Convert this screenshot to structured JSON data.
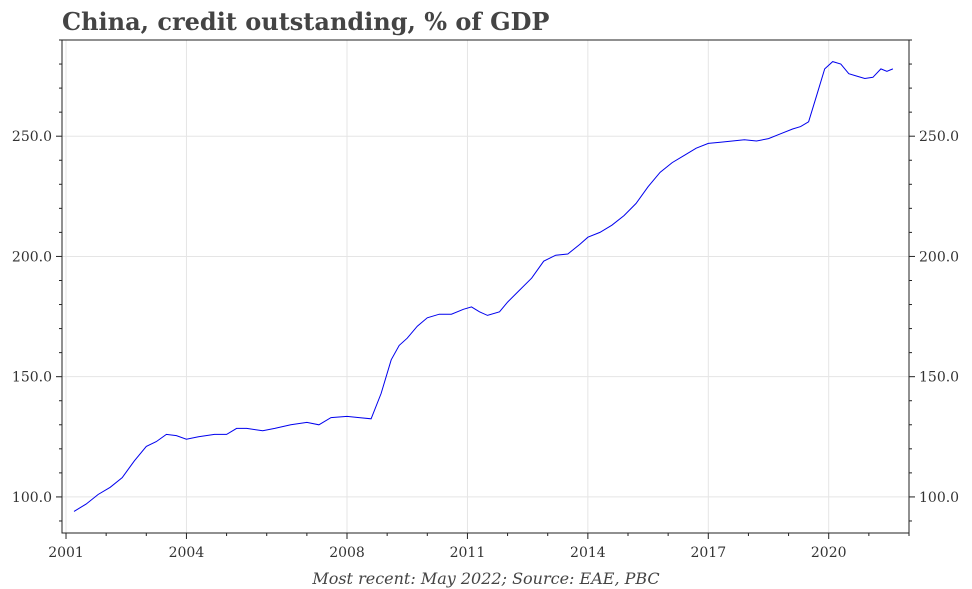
{
  "title": "China, credit outstanding, % of GDP",
  "caption": "Most recent: May 2022; Source: EAE, PBC",
  "chart_data": {
    "type": "line",
    "title": "China, credit outstanding, % of GDP",
    "xlabel": "",
    "ylabel": "",
    "xlim": [
      2000.9,
      2022.0
    ],
    "ylim": [
      85,
      290
    ],
    "xticks": [
      2001,
      2004,
      2008,
      2011,
      2014,
      2017,
      2020
    ],
    "xtick_labels": [
      "2001",
      "2004",
      "2008",
      "2011",
      "2014",
      "2017",
      "2020"
    ],
    "yticks": [
      100,
      150,
      200,
      250
    ],
    "ytick_labels": [
      "100.0",
      "150.0",
      "200.0",
      "250.0"
    ],
    "grid": true,
    "line_color": "#0000ee",
    "series": [
      {
        "x": [
          2001.2,
          2001.5,
          2001.8,
          2002.1,
          2002.4,
          2002.7,
          2003.0,
          2003.25,
          2003.5,
          2003.75,
          2004.0,
          2004.3,
          2004.7,
          2005.0,
          2005.25,
          2005.5,
          2005.9,
          2006.2,
          2006.6,
          2007.0,
          2007.3,
          2007.6,
          2008.0,
          2008.3,
          2008.6,
          2008.85,
          2009.1,
          2009.3,
          2009.5,
          2009.75,
          2010.0,
          2010.3,
          2010.6,
          2010.9,
          2011.1,
          2011.3,
          2011.5,
          2011.8,
          2012.0,
          2012.3,
          2012.6,
          2012.9,
          2013.2,
          2013.5,
          2013.8,
          2014.0,
          2014.3,
          2014.6,
          2014.9,
          2015.2,
          2015.5,
          2015.8,
          2016.1,
          2016.4,
          2016.7,
          2017.0,
          2017.3,
          2017.6,
          2017.9,
          2018.2,
          2018.5,
          2018.8,
          2019.1,
          2019.3,
          2019.5,
          2019.7,
          2019.9,
          2020.1,
          2020.3,
          2020.5,
          2020.7,
          2020.9,
          2021.1,
          2021.3,
          2021.45,
          2021.6
        ],
        "values": [
          94,
          97,
          101,
          104,
          108,
          115,
          121,
          123,
          126,
          125.5,
          124,
          125,
          126,
          126,
          128.5,
          128.5,
          127.5,
          128.5,
          130,
          131,
          130,
          133,
          133.5,
          133,
          132.5,
          143,
          157,
          163,
          166,
          171,
          174.5,
          176,
          176,
          178,
          179,
          177,
          175.5,
          177,
          181,
          186,
          191,
          198,
          200.5,
          201,
          205,
          208,
          210,
          213,
          217,
          222,
          229,
          235,
          239,
          242,
          245,
          247,
          247.5,
          248,
          248.5,
          248,
          249,
          251,
          253,
          254,
          256,
          267,
          278,
          281,
          280,
          276,
          275,
          274,
          274.5,
          278,
          277,
          278
        ]
      }
    ]
  }
}
